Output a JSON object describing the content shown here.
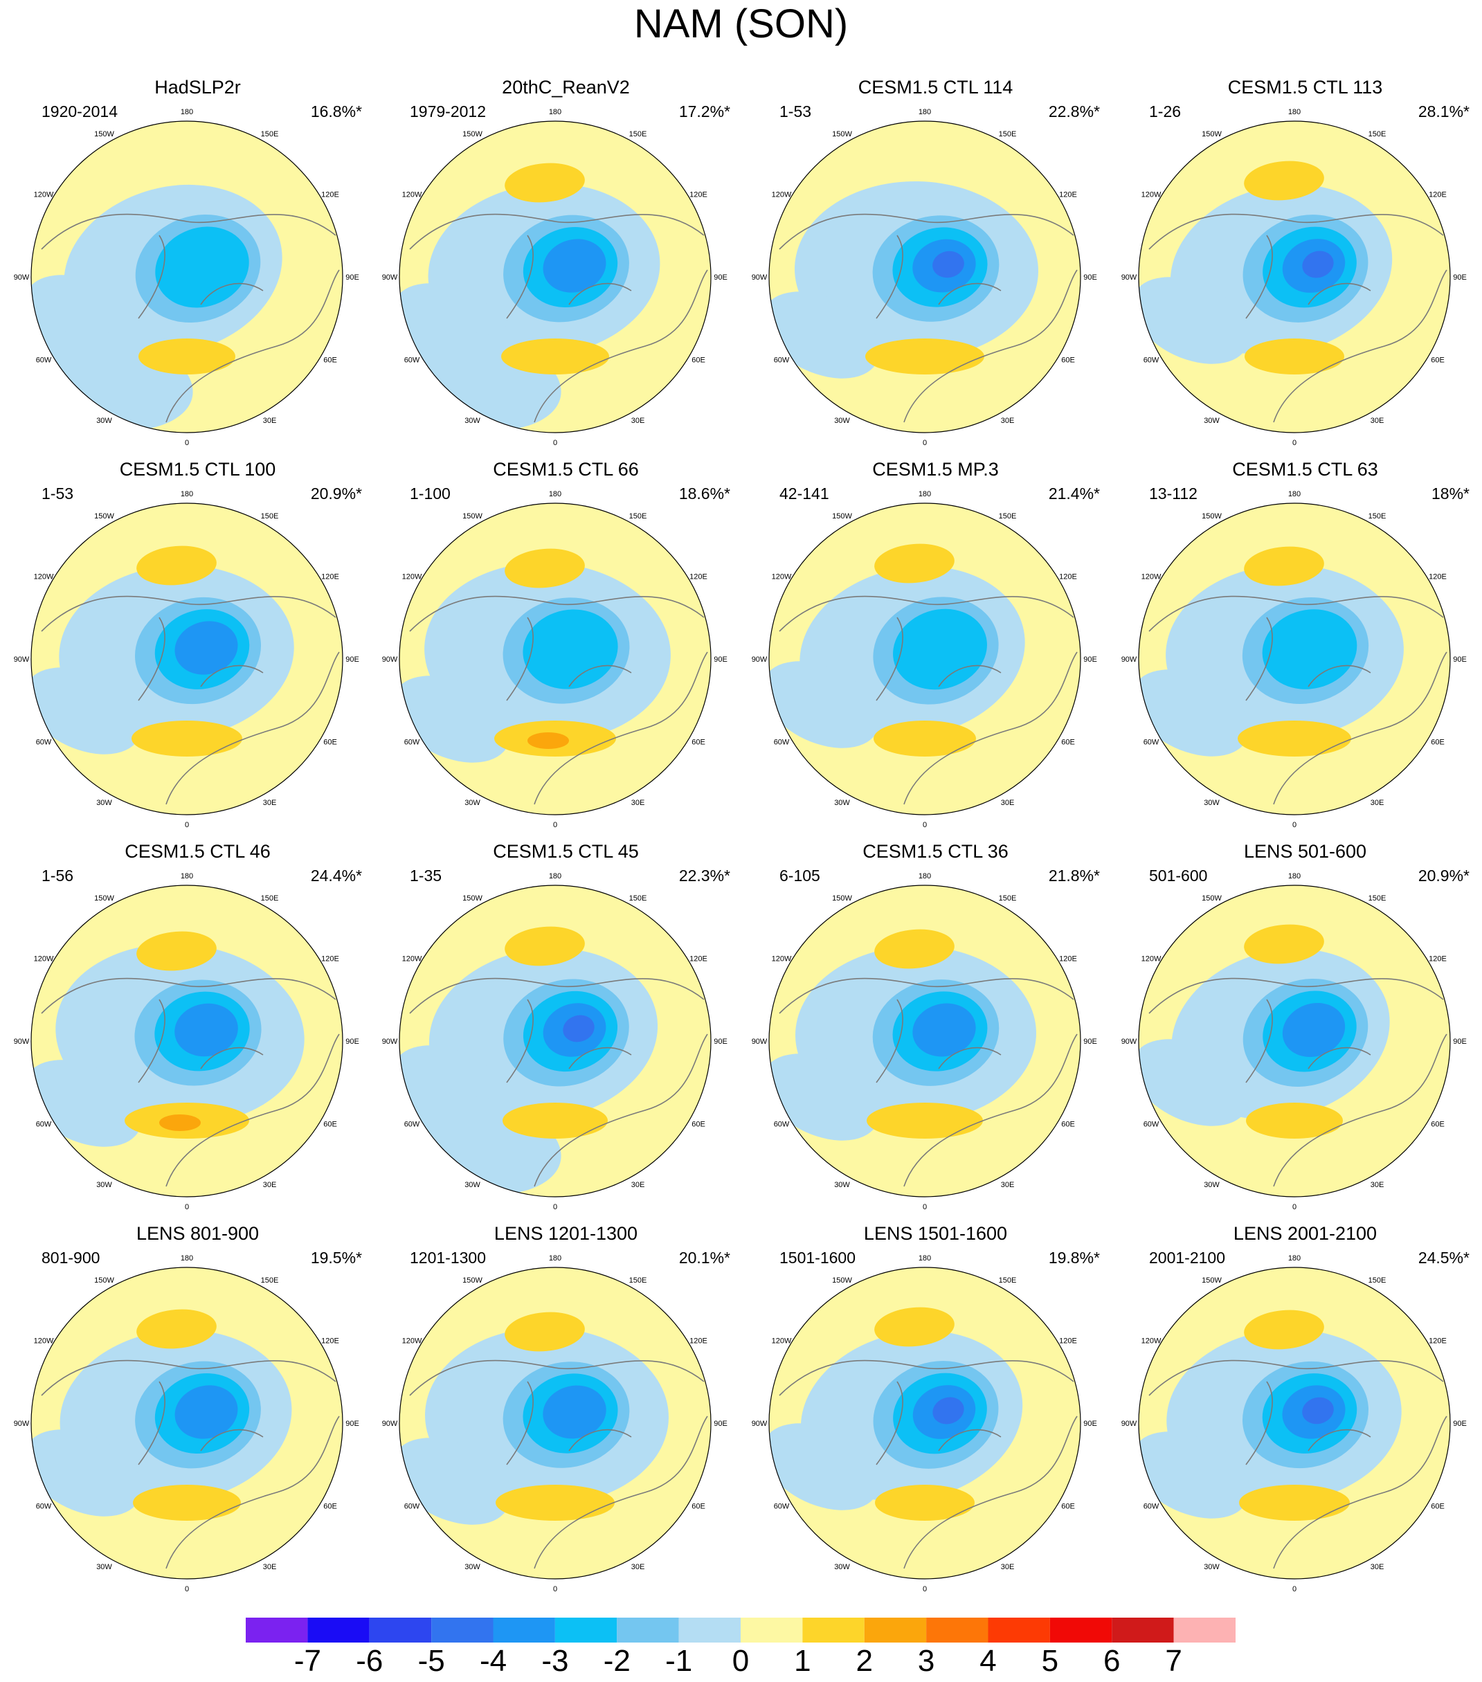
{
  "page": {
    "title": "NAM (SON)"
  },
  "map_labels": {
    "lon_labels": [
      "180",
      "150E",
      "120E",
      "90E",
      "60E",
      "30E",
      "0",
      "30W",
      "60W",
      "90W",
      "120W",
      "150W"
    ]
  },
  "colors": {
    "ocean_yellow": "#fdf8a3",
    "coast_gray": "#7a7a7a",
    "pos1": "#fdd52a",
    "pos2": "#fba60c",
    "neg1": "#b4ddf3",
    "neg2": "#74c6f0",
    "neg3": "#0cc0f5",
    "neg4": "#1e96f4",
    "neg5": "#3274ef"
  },
  "chart_data": {
    "type": "heatmap",
    "title": "NAM (SON)",
    "projection": "North polar stereographic",
    "panels": [
      {
        "title": "HadSLP2r",
        "years": "1920-2014",
        "variance": "16.8%*",
        "min_level": -3,
        "max_level": 2
      },
      {
        "title": "20thC_ReanV2",
        "years": "1979-2012",
        "variance": "17.2%*",
        "min_level": -4,
        "max_level": 2
      },
      {
        "title": "CESM1.5 CTL 114",
        "years": "1-53",
        "variance": "22.8%*",
        "min_level": -5,
        "max_level": 2
      },
      {
        "title": "CESM1.5 CTL 113",
        "years": "1-26",
        "variance": "28.1%*",
        "min_level": -5,
        "max_level": 2
      },
      {
        "title": "CESM1.5 CTL 100",
        "years": "1-53",
        "variance": "20.9%*",
        "min_level": -4,
        "max_level": 2
      },
      {
        "title": "CESM1.5 CTL 66",
        "years": "1-100",
        "variance": "18.6%*",
        "min_level": -3,
        "max_level": 3
      },
      {
        "title": "CESM1.5 MP.3",
        "years": "42-141",
        "variance": "21.4%*",
        "min_level": -3,
        "max_level": 2
      },
      {
        "title": "CESM1.5 CTL 63",
        "years": "13-112",
        "variance": "18%*",
        "min_level": -3,
        "max_level": 2
      },
      {
        "title": "CESM1.5 CTL 46",
        "years": "1-56",
        "variance": "24.4%*",
        "min_level": -4,
        "max_level": 3
      },
      {
        "title": "CESM1.5 CTL 45",
        "years": "1-35",
        "variance": "22.3%*",
        "min_level": -5,
        "max_level": 2
      },
      {
        "title": "CESM1.5 CTL 36",
        "years": "6-105",
        "variance": "21.8%*",
        "min_level": -4,
        "max_level": 2
      },
      {
        "title": "LENS 501-600",
        "years": "501-600",
        "variance": "20.9%*",
        "min_level": -4,
        "max_level": 2
      },
      {
        "title": "LENS 801-900",
        "years": "801-900",
        "variance": "19.5%*",
        "min_level": -4,
        "max_level": 2
      },
      {
        "title": "LENS 1201-1300",
        "years": "1201-1300",
        "variance": "20.1%*",
        "min_level": -4,
        "max_level": 2
      },
      {
        "title": "LENS 1501-1600",
        "years": "1501-1600",
        "variance": "19.8%*",
        "min_level": -5,
        "max_level": 2
      },
      {
        "title": "LENS 2001-2100",
        "years": "2001-2100",
        "variance": "24.5%*",
        "min_level": -5,
        "max_level": 2
      }
    ],
    "colorbar": {
      "labels": [
        "-7",
        "-6",
        "-5",
        "-4",
        "-3",
        "-2",
        "-1",
        "0",
        "1",
        "2",
        "3",
        "4",
        "5",
        "6",
        "7"
      ],
      "colors": [
        "#7b22f0",
        "#1a0cf5",
        "#2d46f0",
        "#3274ef",
        "#1e96f4",
        "#0cc0f5",
        "#74c6f0",
        "#b4ddf3",
        "#fdf8a3",
        "#fdd52a",
        "#fba60c",
        "#fd7608",
        "#fd3a04",
        "#f10906",
        "#d01a1a",
        "#fdb2b3"
      ]
    }
  }
}
